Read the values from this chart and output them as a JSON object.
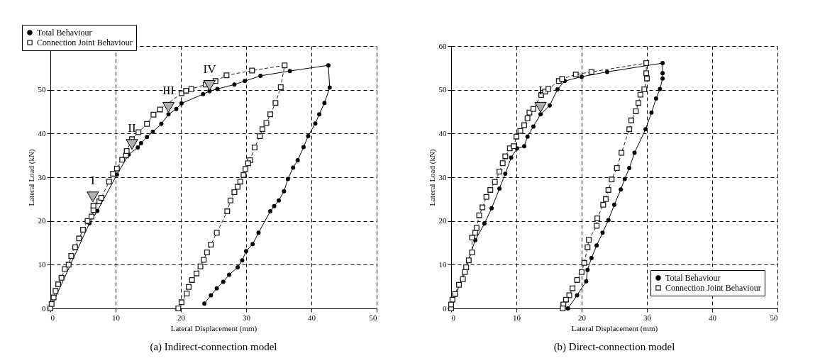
{
  "chart_data": [
    {
      "type": "line",
      "title": "(a) Indirect-connection model",
      "xlabel": "Lateral Displacement (mm)",
      "ylabel": "Lateral Load (kN)",
      "xlim": [
        0,
        50
      ],
      "xticks": [
        0,
        10,
        20,
        30,
        40,
        50
      ],
      "ylim": [
        0,
        60
      ],
      "yticks": [
        0,
        10,
        20,
        30,
        40,
        50,
        {
          "value": 60,
          "label": null
        }
      ],
      "grid": true,
      "legend": "top left",
      "series": [
        {
          "name": "Total Behaviour",
          "color": "#000000",
          "marker": "circle",
          "line_style": "solid",
          "x": [
            0,
            6,
            7.2,
            10.2,
            12,
            13.4,
            13.9,
            14.8,
            15.7,
            17,
            18.1,
            19.3,
            20.1,
            23.4,
            24.4,
            25.6,
            28.2,
            29.8,
            32.2,
            36.7,
            42.6,
            42.8,
            42.0,
            41.2,
            40.6,
            39.5,
            38.8,
            37.9,
            37.2,
            36.4,
            35.8,
            35.0,
            34.3,
            33.7,
            31.9,
            31.0,
            30.0,
            29.4,
            28.7,
            27.4,
            26.5,
            25.5,
            24.6,
            23.6
          ],
          "values": [
            0,
            19.5,
            22.3,
            30.6,
            35.2,
            36.8,
            37.8,
            39.2,
            40.4,
            42.2,
            44.4,
            45.6,
            46.9,
            49.0,
            49.7,
            50.2,
            51.2,
            52.0,
            53.2,
            54.3,
            55.6,
            50.5,
            47.0,
            44.4,
            42.3,
            39.4,
            36.9,
            33.9,
            32.2,
            29.6,
            26.8,
            24.7,
            23.4,
            22.2,
            17.3,
            14.7,
            13.1,
            11.0,
            9.4,
            7.7,
            6.1,
            4.6,
            3.0,
            1.1
          ]
        },
        {
          "name": "Connection Joint Behaviour",
          "color": "#1f1f1f",
          "marker": "square",
          "line_style": "dashed",
          "x": [
            0,
            0.2,
            0.5,
            0.8,
            1.2,
            1.7,
            2.2,
            2.8,
            3.2,
            3.8,
            4.4,
            5,
            5.7,
            6.3,
            6.6,
            6.6,
            7.5,
            7.8,
            9,
            9.6,
            10.2,
            11,
            11.6,
            11.7,
            12.5,
            13.5,
            14.8,
            15.8,
            16.8,
            20.1,
            20.8,
            21.6,
            23.8,
            25.3,
            27.0,
            30.9,
            35.9,
            35.3,
            34.5,
            33.7,
            33.1,
            32.5,
            32.1,
            31.3,
            30.6,
            30.3,
            29.9,
            29.6,
            29.1,
            28.7,
            28.2,
            27.6,
            27.1,
            25.5,
            24.6,
            24.0,
            23.5,
            23.0,
            22.4,
            21.7,
            21.2,
            20.9,
            20.1,
            19.6
          ],
          "values": [
            0,
            1,
            2.5,
            4,
            5.5,
            7,
            9,
            10,
            12,
            14,
            16,
            18,
            20,
            21,
            22.5,
            23.5,
            24.5,
            25.3,
            29,
            30.8,
            32,
            34,
            35,
            36,
            38.7,
            40.3,
            42.2,
            44.3,
            45.5,
            49.2,
            49.8,
            50.2,
            51.2,
            52.0,
            53.3,
            54.4,
            55.6,
            50.6,
            47.0,
            44.4,
            42.4,
            41.0,
            39.4,
            36.8,
            33.9,
            33.2,
            31.9,
            30.5,
            29.0,
            27.8,
            26.6,
            24.7,
            22.2,
            17.3,
            14.6,
            12.8,
            11.1,
            9.6,
            8.0,
            6.5,
            4.9,
            3.4,
            1.4,
            0
          ]
        }
      ],
      "annotations": [
        {
          "text": "I",
          "x": 6.5,
          "y": 25.5
        },
        {
          "text": "II",
          "x": 12.5,
          "y": 37.5
        },
        {
          "text": "III",
          "x": 18.1,
          "y": 46
        },
        {
          "text": "IV",
          "x": 24.4,
          "y": 51
        }
      ]
    },
    {
      "type": "line",
      "title": "(b) Direct-connection model",
      "xlabel": "Lateral Displacement (mm)",
      "ylabel": "Lateral Load (kN)",
      "xlim": [
        0,
        50
      ],
      "xticks": [
        0,
        10,
        20,
        30,
        40,
        50
      ],
      "ylim": [
        0,
        60
      ],
      "yticks": [
        0,
        10,
        20,
        30,
        40,
        50,
        60
      ],
      "grid": true,
      "legend": "bottom right",
      "series": [
        {
          "name": "Total Behaviour",
          "color": "#000000",
          "marker": "circle",
          "line_style": "solid",
          "x": [
            0,
            3.7,
            5.1,
            6.2,
            7.4,
            8.3,
            9.2,
            10.1,
            11.2,
            11.7,
            12.6,
            13.7,
            15.1,
            16.3,
            17.4,
            20.0,
            23.9,
            32.4,
            32.4,
            32.4,
            32.0,
            31.4,
            30.7,
            29.8,
            28.1,
            27.3,
            26.6,
            26.0,
            25.0,
            24.1,
            23.2,
            22.3,
            21.5,
            20.9,
            20.7,
            19.3,
            17.9
          ],
          "values": [
            0,
            15.6,
            19.4,
            22.9,
            27.4,
            30.8,
            34.5,
            36.6,
            37.1,
            39.3,
            41.6,
            44.4,
            46.4,
            50.1,
            52.0,
            53.0,
            54.1,
            56.1,
            53.8,
            52.6,
            50.2,
            48.0,
            44.8,
            41.0,
            35.6,
            32.1,
            29.6,
            27.2,
            23.7,
            20.2,
            17.3,
            14.4,
            11.5,
            8.8,
            6.2,
            3.0,
            0
          ]
        },
        {
          "name": "Connection Joint Behaviour",
          "color": "#1f1f1f",
          "marker": "square",
          "line_style": "dashed",
          "x": [
            0,
            0,
            0.2,
            0.6,
            1.2,
            1.8,
            2.1,
            2.3,
            2.7,
            3.2,
            3.2,
            3.7,
            3.9,
            4.3,
            4.8,
            5.4,
            6.0,
            6.7,
            7.4,
            7.9,
            8.3,
            9.0,
            9.6,
            10.0,
            10.6,
            11.2,
            11.7,
            12.0,
            12.6,
            13.8,
            14.4,
            14.9,
            16.5,
            17.0,
            19.1,
            21.5,
            29.9,
            29.9,
            30.0,
            29.6,
            29.0,
            28.7,
            28.3,
            27.6,
            27.3,
            26.1,
            25.4,
            24.6,
            24.1,
            23.7,
            23.3,
            22.4,
            22.3,
            21.1,
            20.9,
            20.4,
            20.0,
            19.3,
            18.6,
            18.1,
            17.6,
            17.2,
            17.1
          ],
          "values": [
            0,
            0.9,
            2,
            3.3,
            5.4,
            6.7,
            8.3,
            9.4,
            11,
            12.8,
            16.2,
            17.3,
            18.4,
            21.3,
            23.1,
            25.5,
            27.1,
            28.9,
            31.3,
            33.2,
            34.8,
            36.6,
            37.1,
            39.3,
            40.6,
            41.9,
            43.5,
            44.8,
            45.6,
            48.8,
            49.6,
            50.2,
            52.0,
            52.5,
            53.5,
            54.1,
            56.1,
            53.8,
            52.6,
            50.1,
            48.9,
            47.0,
            45.1,
            43.0,
            41.0,
            35.6,
            32.1,
            29.5,
            27.1,
            25.0,
            23.7,
            20.6,
            18.9,
            15.7,
            14.0,
            10.4,
            8.3,
            6.5,
            4.6,
            3.0,
            2.0,
            0.9,
            0
          ]
        }
      ],
      "annotations": [
        {
          "text": "I",
          "x": 13.7,
          "y": 46
        }
      ]
    }
  ]
}
